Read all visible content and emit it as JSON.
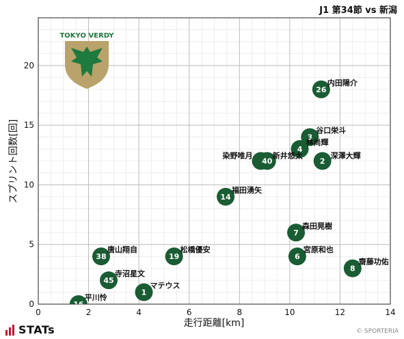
{
  "header": {
    "title": "J1 第34節 vs 新潟"
  },
  "footer": {
    "brand": "STATs",
    "copyright": "© SPORTERIA"
  },
  "logo": {
    "text": "TOKYO VERDY"
  },
  "colors": {
    "point": "#1a5c33",
    "grid_major": "#bbbbbb",
    "grid_minor": "#e2e2e2",
    "logo_green": "#1e7a3e",
    "logo_gold": "#b9a36a"
  },
  "chart_data": {
    "type": "scatter",
    "title": "",
    "xlabel": "走行距離[km]",
    "ylabel": "スプリント回数[回]",
    "xlim": [
      0,
      14
    ],
    "ylim": [
      0,
      24
    ],
    "xticks": [
      0,
      2,
      4,
      6,
      8,
      10,
      12,
      14
    ],
    "yticks": [
      0,
      5,
      10,
      15,
      20
    ],
    "grid": true,
    "points": [
      {
        "number": "26",
        "name": "内田陽介",
        "x": 11.25,
        "y": 18
      },
      {
        "number": "3",
        "name": "谷口栄斗",
        "x": 10.8,
        "y": 14
      },
      {
        "number": "4",
        "name": "林尚輝",
        "x": 10.4,
        "y": 13
      },
      {
        "number": "9",
        "name": "染野唯月",
        "x": 8.85,
        "y": 12
      },
      {
        "number": "40",
        "name": "新井悠太",
        "x": 9.1,
        "y": 12
      },
      {
        "number": "2",
        "name": "深澤大輝",
        "x": 11.3,
        "y": 12
      },
      {
        "number": "14",
        "name": "福田湧矢",
        "x": 7.45,
        "y": 9
      },
      {
        "number": "7",
        "name": "森田晃樹",
        "x": 10.25,
        "y": 6
      },
      {
        "number": "6",
        "name": "宮原和也",
        "x": 10.3,
        "y": 4
      },
      {
        "number": "8",
        "name": "齋藤功佑",
        "x": 12.5,
        "y": 3
      },
      {
        "number": "38",
        "name": "唐山翔自",
        "x": 2.5,
        "y": 4
      },
      {
        "number": "19",
        "name": "松橋優安",
        "x": 5.4,
        "y": 4
      },
      {
        "number": "45",
        "name": "寺沼星文",
        "x": 2.8,
        "y": 2
      },
      {
        "number": "1",
        "name": "マテウス",
        "x": 4.2,
        "y": 1
      },
      {
        "number": "16",
        "name": "平川怜",
        "x": 1.6,
        "y": 0
      }
    ]
  }
}
